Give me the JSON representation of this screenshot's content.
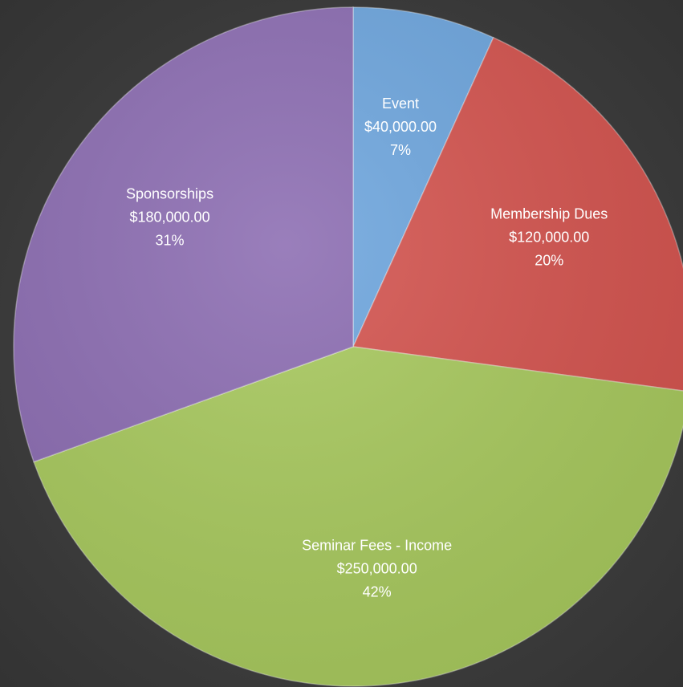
{
  "chart_data": {
    "type": "pie",
    "categories": [
      "Event",
      "Membership Dues",
      "Seminar Fees - Income",
      "Sponsorships"
    ],
    "values": [
      40000,
      120000,
      250000,
      180000
    ],
    "value_labels": [
      "$40,000.00",
      "$120,000.00",
      "$250,000.00",
      "$180,000.00"
    ],
    "percents": [
      7,
      20,
      42,
      31
    ],
    "percent_labels": [
      "7%",
      "20%",
      "42%",
      "31%"
    ],
    "colors": [
      "#6ea6de",
      "#d4544f",
      "#a8c95e",
      "#8c6db2"
    ]
  }
}
